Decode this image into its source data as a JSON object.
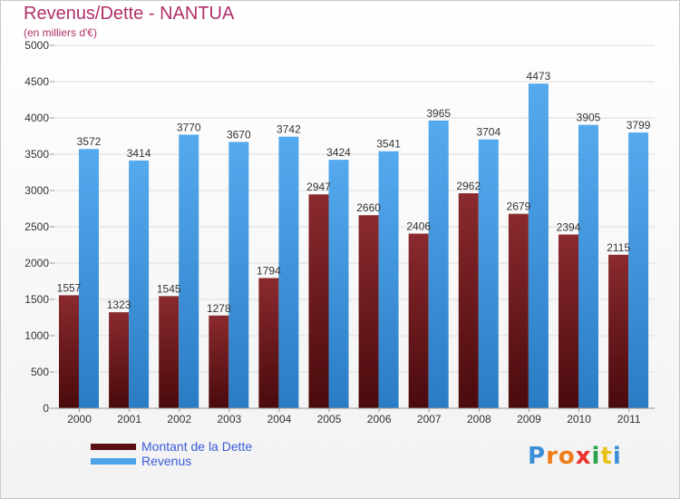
{
  "header": {
    "title": "Revenus/Dette - NANTUA",
    "subtitle": "(en milliers d'€)"
  },
  "colors": {
    "dette": "#7a1f24",
    "revenus": "#4ea3e6",
    "title": "#b0306a",
    "legend_text": "#3b5bdb"
  },
  "chart_data": {
    "type": "bar",
    "title": "Revenus/Dette - NANTUA",
    "subtitle": "(en milliers d'€)",
    "categories": [
      "2000",
      "2001",
      "2002",
      "2003",
      "2004",
      "2005",
      "2006",
      "2007",
      "2008",
      "2009",
      "2010",
      "2011"
    ],
    "series": [
      {
        "name": "Montant de la Dette",
        "values": [
          1557,
          1323,
          1545,
          1278,
          1794,
          2947,
          2660,
          2406,
          2962,
          2679,
          2394,
          2115
        ]
      },
      {
        "name": "Revenus",
        "values": [
          3572,
          3414,
          3770,
          3670,
          3742,
          3424,
          3541,
          3965,
          3704,
          4473,
          3905,
          3799
        ]
      }
    ],
    "ylim": [
      0,
      5000
    ],
    "yticks": [
      0,
      500,
      1000,
      1500,
      2000,
      2500,
      3000,
      3500,
      4000,
      4500,
      5000
    ],
    "grid": true,
    "legend": "bottom-left"
  },
  "legend": {
    "items": [
      {
        "label": "Montant de la Dette",
        "color": "#7a1f24"
      },
      {
        "label": "Revenus",
        "color": "#4ea3e6"
      }
    ]
  },
  "logo": {
    "letters": [
      "P",
      "r",
      "o",
      "x",
      "i",
      "t",
      "i"
    ],
    "colors": [
      "#3b8fd9",
      "#f07b1a",
      "#f07b1a",
      "#e8322b",
      "#2aa34a",
      "#e8c21a",
      "#3b8fd9"
    ]
  }
}
